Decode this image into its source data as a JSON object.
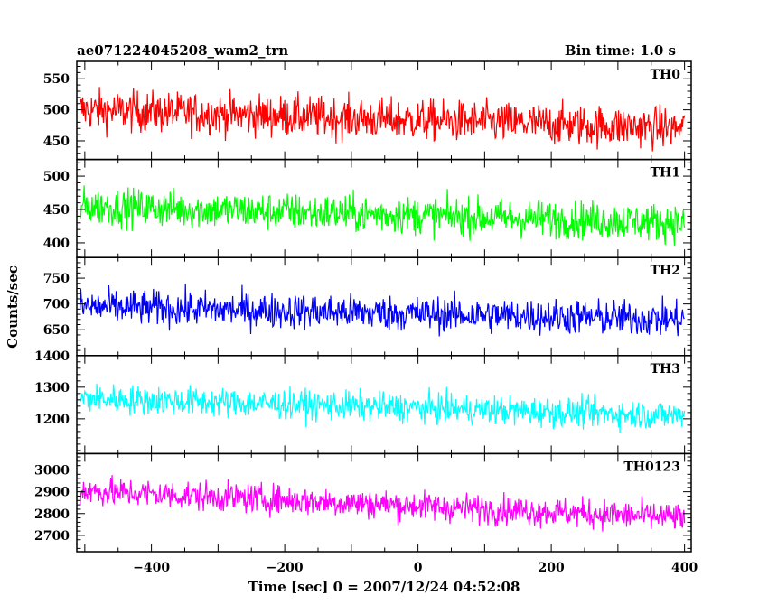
{
  "chart_data": {
    "type": "line",
    "title": "ae071224045208_wam2_trn",
    "subtitle": "Bin time: 1.0 s",
    "xlabel": "Time [sec] 0 = 2007/12/24 04:52:08",
    "ylabel": "Counts/sec",
    "xlim": [
      -512,
      410
    ],
    "x_ticks": [
      -400,
      -200,
      0,
      200,
      400
    ],
    "x_tick_labels": [
      "−400",
      "−200",
      "0",
      "200",
      "400"
    ],
    "x_start": -507,
    "x_end": 400,
    "bin_time": 1.0,
    "grid": false,
    "panels": [
      {
        "name": "TH0",
        "color": "#ff0000",
        "ylim": [
          420,
          578
        ],
        "ticks": [
          450,
          500,
          550
        ],
        "tick_labels": [
          "450",
          "500",
          "550"
        ],
        "mean_start": 500,
        "mean_end": 470,
        "amp": 27
      },
      {
        "name": "TH1",
        "color": "#00ff00",
        "ylim": [
          378,
          525
        ],
        "ticks": [
          400,
          450,
          500
        ],
        "tick_labels": [
          "400",
          "450",
          "500"
        ],
        "mean_start": 455,
        "mean_end": 430,
        "amp": 23
      },
      {
        "name": "TH2",
        "color": "#0000ff",
        "ylim": [
          600,
          790
        ],
        "ticks": [
          650,
          700,
          750
        ],
        "tick_labels": [
          "650",
          "700",
          "750"
        ],
        "mean_start": 695,
        "mean_end": 670,
        "amp": 28
      },
      {
        "name": "TH3",
        "color": "#00ffff",
        "ylim": [
          1090,
          1400
        ],
        "ticks": [
          1200,
          1300,
          1400
        ],
        "tick_labels": [
          "1200",
          "1300",
          "1400"
        ],
        "mean_start": 1265,
        "mean_end": 1210,
        "amp": 38
      },
      {
        "name": "TH0123",
        "color": "#ff00ff",
        "ylim": [
          2625,
          3075
        ],
        "ticks": [
          2700,
          2800,
          2900,
          3000
        ],
        "tick_labels": [
          "2700",
          "2800",
          "2900",
          "3000"
        ],
        "mean_start": 2905,
        "mean_end": 2780,
        "amp": 55
      }
    ]
  }
}
